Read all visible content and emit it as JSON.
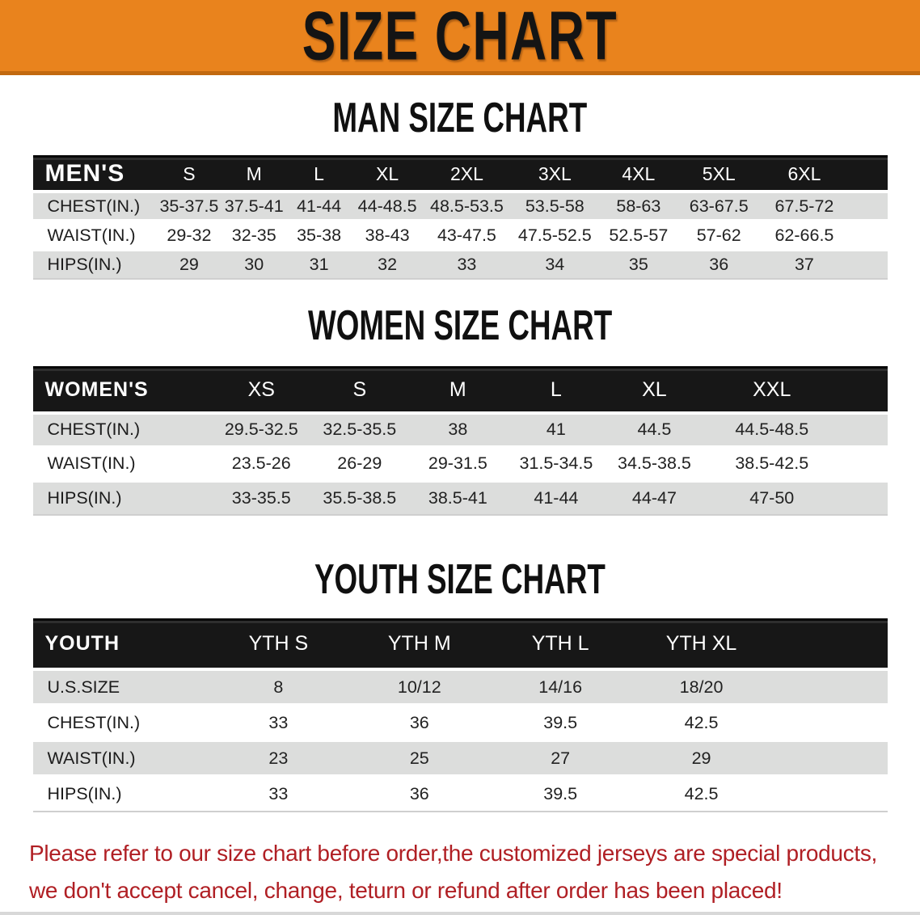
{
  "banner": {
    "title": "SIZE CHART"
  },
  "colors": {
    "banner_background": "#E9831D",
    "banner_bottom_edge": "#C2690F",
    "table_header_band": "#171717",
    "row_stripe_gray": "#DCDDDC",
    "disclaimer_red": "#B01F24"
  },
  "chart_data": [
    {
      "type": "table",
      "title": "MAN SIZE CHART",
      "corner_label": "MEN'S",
      "columns": [
        "S",
        "M",
        "L",
        "XL",
        "2XL",
        "3XL",
        "4XL",
        "5XL",
        "6XL"
      ],
      "rows": [
        {
          "label": "CHEST(IN.)",
          "values": [
            "35-37.5",
            "37.5-41",
            "41-44",
            "44-48.5",
            "48.5-53.5",
            "53.5-58",
            "58-63",
            "63-67.5",
            "67.5-72"
          ]
        },
        {
          "label": "WAIST(IN.)",
          "values": [
            "29-32",
            "32-35",
            "35-38",
            "38-43",
            "43-47.5",
            "47.5-52.5",
            "52.5-57",
            "57-62",
            "62-66.5"
          ]
        },
        {
          "label": "HIPS(IN.)",
          "values": [
            "29",
            "30",
            "31",
            "32",
            "33",
            "34",
            "35",
            "36",
            "37"
          ]
        }
      ]
    },
    {
      "type": "table",
      "title": "WOMEN SIZE CHART",
      "corner_label": "WOMEN'S",
      "columns": [
        "XS",
        "S",
        "M",
        "L",
        "XL",
        "XXL"
      ],
      "rows": [
        {
          "label": "CHEST(IN.)",
          "values": [
            "29.5-32.5",
            "32.5-35.5",
            "38",
            "41",
            "44.5",
            "44.5-48.5"
          ]
        },
        {
          "label": "WAIST(IN.)",
          "values": [
            "23.5-26",
            "26-29",
            "29-31.5",
            "31.5-34.5",
            "34.5-38.5",
            "38.5-42.5"
          ]
        },
        {
          "label": "HIPS(IN.)",
          "values": [
            "33-35.5",
            "35.5-38.5",
            "38.5-41",
            "41-44",
            "44-47",
            "47-50"
          ]
        }
      ]
    },
    {
      "type": "table",
      "title": "YOUTH SIZE CHART",
      "corner_label": "YOUTH",
      "columns": [
        "YTH S",
        "YTH M",
        "YTH L",
        "YTH XL"
      ],
      "rows": [
        {
          "label": "U.S.SIZE",
          "values": [
            "8",
            "10/12",
            "14/16",
            "18/20"
          ]
        },
        {
          "label": "CHEST(IN.)",
          "values": [
            "33",
            "36",
            "39.5",
            "42.5"
          ]
        },
        {
          "label": "WAIST(IN.)",
          "values": [
            "23",
            "25",
            "27",
            "29"
          ]
        },
        {
          "label": "HIPS(IN.)",
          "values": [
            "33",
            "36",
            "39.5",
            "42.5"
          ]
        }
      ]
    }
  ],
  "disclaimer": {
    "line1": "Please refer to our size chart before order,the customized jerseys are special products,",
    "line2": "we don't accept cancel, change, teturn or refund after order has been placed!"
  }
}
